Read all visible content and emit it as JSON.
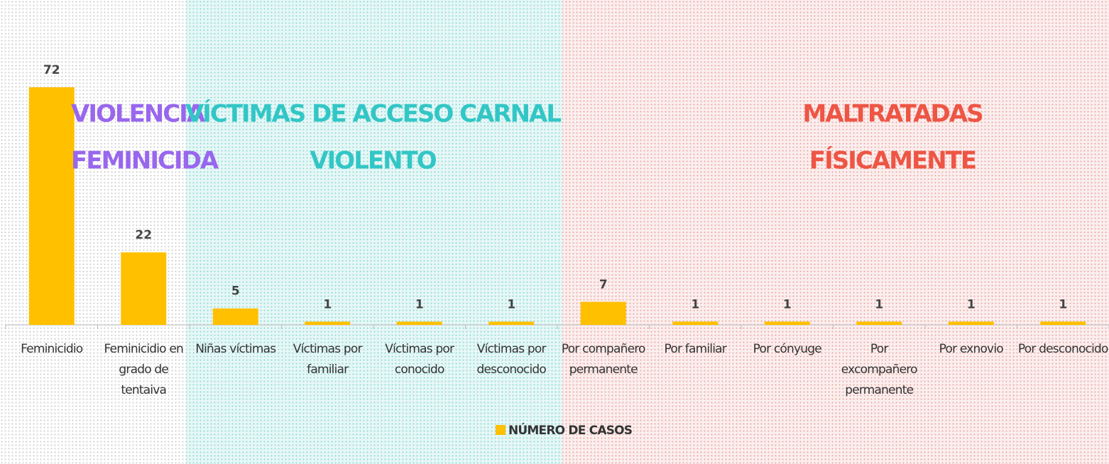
{
  "chart_data": {
    "type": "bar",
    "categories": [
      "Feminicidio",
      "Feminicidio en grado de tentaiva",
      "Niñas víctimas",
      "Víctimas por familiar",
      "Víctimas por conocido",
      "Víctimas por desconocido",
      "Por compañero permanente",
      "Por familiar",
      "Por cónyuge",
      "Por excompañero permanente",
      "Por exnovio",
      "Por desconocido"
    ],
    "series": [
      {
        "name": "NÚMERO DE CASOS",
        "color": "#ffc000",
        "values": [
          72,
          22,
          5,
          1,
          1,
          1,
          7,
          1,
          1,
          1,
          1,
          1
        ]
      }
    ],
    "ylim": [
      0,
      72
    ],
    "legend": "bottom",
    "annotations": [
      {
        "lines": [
          "VIOLENCIA",
          "FEMINICIDA"
        ],
        "color": "#9966ee"
      },
      {
        "lines": [
          "VÍCTIMAS DE ACCESO CARNAL",
          "VIOLENTO"
        ],
        "color": "#33c6c6"
      },
      {
        "lines": [
          "MALTRATADAS",
          "FÍSICAMENTE"
        ],
        "color": "#ee5544"
      }
    ]
  }
}
